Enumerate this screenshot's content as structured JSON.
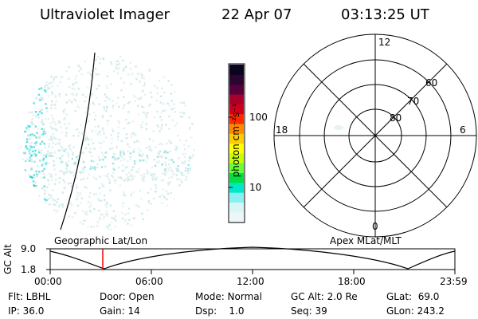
{
  "header": {
    "title": "Ultraviolet Imager",
    "date": "22 Apr 07",
    "time": "03:13:25 UT"
  },
  "colorbar": {
    "unit_label": "photon cm⁻²s⁻¹",
    "tick_labels": [
      "100",
      "10"
    ],
    "colors": [
      "#0a0420",
      "#2a0530",
      "#55003a",
      "#a8002a",
      "#d0001c",
      "#ff2a00",
      "#ff8a00",
      "#ffcc00",
      "#ffff00",
      "#c8ff00",
      "#66ff33",
      "#00e040",
      "#00e8c8",
      "#88f0f0",
      "#d8f6f6",
      "#eef7f7"
    ]
  },
  "polar_plot": {
    "mlt_labels": {
      "top": "12",
      "left": "18",
      "right": "6",
      "bottom": "0"
    },
    "lat_labels": [
      "60",
      "70",
      "80"
    ]
  },
  "timeline": {
    "axis_label": "GC Alt",
    "y_ticks": [
      "9.0",
      "1.8"
    ],
    "left_caption": "Geographic Lat/Lon",
    "right_caption": "Apex MLat/MLT",
    "x_ticks": [
      "00:00",
      "06:00",
      "12:00",
      "18:00",
      "23:59"
    ],
    "marker_time": "03:13:25"
  },
  "info": {
    "flt": "Flt: LBHL",
    "ip": "IP: 36.0",
    "door": "Door: Open",
    "gain": "Gain: 14",
    "mode": "Mode: Normal",
    "dsp": "Dsp:    1.0",
    "gcalt": "GC Alt: 2.0 Re",
    "seq": "Seq: 39",
    "glat": "GLat:  69.0",
    "glon": "GLon: 243.2"
  },
  "colors": {
    "aurora": "#66e0e0",
    "marker": "#ff0000"
  }
}
